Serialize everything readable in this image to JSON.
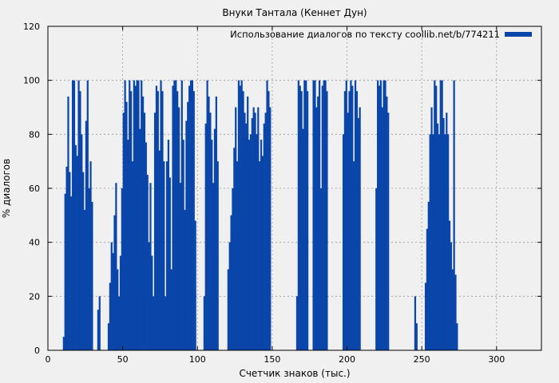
{
  "chart_data": {
    "type": "bar",
    "title": "Внуки Тантала (Кеннет Дун)",
    "xlabel": "Счетчик знаков (тыс.)",
    "ylabel": "% диалогов",
    "xlim": [
      0,
      330
    ],
    "ylim": [
      0,
      120
    ],
    "xticks": [
      0,
      50,
      100,
      150,
      200,
      250,
      300
    ],
    "yticks": [
      0,
      20,
      40,
      60,
      80,
      100,
      120
    ],
    "grid": true,
    "legend_position": "top-right",
    "series": [
      {
        "name": "Использование диалогов по тексту coollib.net/b/774211",
        "color": "#0a46aa",
        "bin_width": 1,
        "x_start": 10,
        "values": [
          5,
          58,
          68,
          94,
          66,
          57,
          100,
          100,
          76,
          72,
          100,
          96,
          80,
          66,
          52,
          85,
          100,
          60,
          70,
          55,
          0,
          0,
          0,
          15,
          20,
          0,
          0,
          0,
          0,
          0,
          10,
          25,
          40,
          36,
          50,
          62,
          30,
          20,
          35,
          60,
          88,
          100,
          92,
          78,
          100,
          96,
          70,
          100,
          98,
          100,
          100,
          82,
          100,
          94,
          88,
          77,
          65,
          40,
          62,
          35,
          20,
          88,
          98,
          96,
          74,
          100,
          96,
          70,
          20,
          70,
          78,
          64,
          30,
          98,
          100,
          100,
          96,
          90,
          62,
          100,
          78,
          52,
          85,
          92,
          98,
          100,
          100,
          96,
          48,
          0,
          0,
          0,
          0,
          0,
          20,
          84,
          100,
          94,
          88,
          78,
          62,
          82,
          94,
          70,
          0,
          0,
          0,
          0,
          0,
          0,
          30,
          40,
          50,
          60,
          75,
          90,
          70,
          100,
          98,
          100,
          96,
          88,
          84,
          94,
          78,
          80,
          86,
          90,
          88,
          80,
          90,
          70,
          78,
          72,
          84,
          88,
          100,
          96,
          90,
          0,
          0,
          0,
          0,
          0,
          0,
          0,
          0,
          0,
          0,
          0,
          0,
          0,
          0,
          0,
          0,
          0,
          20,
          100,
          98,
          96,
          82,
          100,
          100,
          96,
          0,
          0,
          0,
          100,
          100,
          90,
          94,
          100,
          60,
          98,
          100,
          100,
          96,
          0,
          0,
          0,
          0,
          0,
          0,
          0,
          0,
          0,
          0,
          80,
          96,
          100,
          88,
          96,
          100,
          98,
          70,
          100,
          96,
          86,
          90,
          0,
          0,
          0,
          0,
          0,
          0,
          0,
          0,
          0,
          0,
          60,
          100,
          98,
          100,
          90,
          100,
          100,
          94,
          88,
          0,
          0,
          0,
          0,
          0,
          0,
          0,
          0,
          0,
          0,
          0,
          0,
          0,
          0,
          0,
          0,
          0,
          20,
          10,
          0,
          0,
          0,
          0,
          0,
          25,
          45,
          55,
          80,
          90,
          80,
          100,
          98,
          84,
          80,
          100,
          100,
          86,
          80,
          88,
          80,
          48,
          40,
          30,
          100,
          28,
          10
        ]
      }
    ]
  }
}
